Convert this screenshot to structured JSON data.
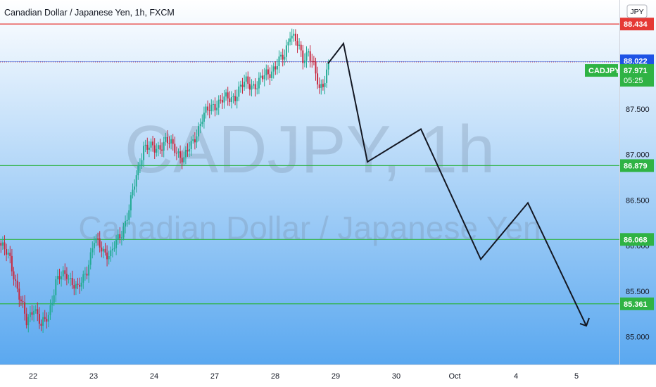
{
  "header": {
    "title": "Canadian Dollar / Japanese Yen, 1h, FXCM",
    "currency_badge": "JPY"
  },
  "watermark": {
    "symbol": "CADJPY, 1h",
    "description": "Canadian Dollar / Japanese Yen"
  },
  "colors": {
    "up_candle": "#22ab94",
    "down_candle": "#c8283f",
    "resistance_line": "#e53935",
    "support_line": "#2fb344",
    "current_price_line": "#1e53e5",
    "projection_path": "#131722",
    "bg_top": "#ffffff",
    "bg_bottom": "#5aa8f0"
  },
  "chart_data": {
    "type": "candlestick",
    "symbol": "CADJPY",
    "interval": "1h",
    "y_axis": {
      "ticks": [
        87.5,
        87.0,
        86.5,
        86.0,
        85.5,
        85.0
      ],
      "tick_labels": [
        "87.500",
        "87.000",
        "86.500",
        "86.000",
        "85.500",
        "85.000"
      ]
    },
    "x_axis": {
      "ticks": [
        "22",
        "23",
        "24",
        "27",
        "28",
        "29",
        "30",
        "Oct",
        "4",
        "5"
      ]
    },
    "horizontal_levels": [
      {
        "label": "88.434",
        "value": 88.434,
        "kind": "resistance"
      },
      {
        "label": "86.879",
        "value": 86.879,
        "kind": "support"
      },
      {
        "label": "86.068",
        "value": 86.068,
        "kind": "support"
      },
      {
        "label": "85.361",
        "value": 85.361,
        "kind": "support"
      }
    ],
    "last_price": {
      "symbol_tag": "CADJPY",
      "price": "88.022",
      "price_value": 88.022,
      "last": "87.971",
      "last_value": 87.971,
      "countdown": "05:25"
    },
    "price_anchors": [
      {
        "bar": 0,
        "v": 86.0
      },
      {
        "bar": 5,
        "v": 85.85
      },
      {
        "bar": 10,
        "v": 85.45
      },
      {
        "bar": 14,
        "v": 85.15
      },
      {
        "bar": 18,
        "v": 85.35
      },
      {
        "bar": 22,
        "v": 85.1
      },
      {
        "bar": 26,
        "v": 85.25
      },
      {
        "bar": 30,
        "v": 85.6
      },
      {
        "bar": 36,
        "v": 85.7
      },
      {
        "bar": 42,
        "v": 85.5
      },
      {
        "bar": 47,
        "v": 85.75
      },
      {
        "bar": 51,
        "v": 86.05
      },
      {
        "bar": 56,
        "v": 85.95
      },
      {
        "bar": 60,
        "v": 85.9
      },
      {
        "bar": 66,
        "v": 86.15
      },
      {
        "bar": 70,
        "v": 86.4
      },
      {
        "bar": 74,
        "v": 86.75
      },
      {
        "bar": 78,
        "v": 87.1
      },
      {
        "bar": 84,
        "v": 87.05
      },
      {
        "bar": 90,
        "v": 87.15
      },
      {
        "bar": 96,
        "v": 87.05
      },
      {
        "bar": 100,
        "v": 86.95
      },
      {
        "bar": 104,
        "v": 87.1
      },
      {
        "bar": 110,
        "v": 87.4
      },
      {
        "bar": 116,
        "v": 87.55
      },
      {
        "bar": 122,
        "v": 87.6
      },
      {
        "bar": 128,
        "v": 87.65
      },
      {
        "bar": 134,
        "v": 87.8
      },
      {
        "bar": 140,
        "v": 87.75
      },
      {
        "bar": 145,
        "v": 87.9
      },
      {
        "bar": 150,
        "v": 87.95
      },
      {
        "bar": 155,
        "v": 88.1
      },
      {
        "bar": 158,
        "v": 88.35
      },
      {
        "bar": 162,
        "v": 88.2
      },
      {
        "bar": 165,
        "v": 88.05
      },
      {
        "bar": 168,
        "v": 88.15
      },
      {
        "bar": 171,
        "v": 87.95
      },
      {
        "bar": 174,
        "v": 87.7
      },
      {
        "bar": 177,
        "v": 87.85
      },
      {
        "bar": 179,
        "v": 88.0
      }
    ],
    "projection": [
      {
        "date": "29",
        "v": 88.0
      },
      {
        "date": "29",
        "v": 88.22
      },
      {
        "date": "30",
        "v": 86.92
      },
      {
        "date": "Oct",
        "v": 87.28
      },
      {
        "date": "4",
        "v": 85.85
      },
      {
        "date": "4",
        "v": 86.47
      },
      {
        "date": "5",
        "v": 85.12
      }
    ]
  }
}
